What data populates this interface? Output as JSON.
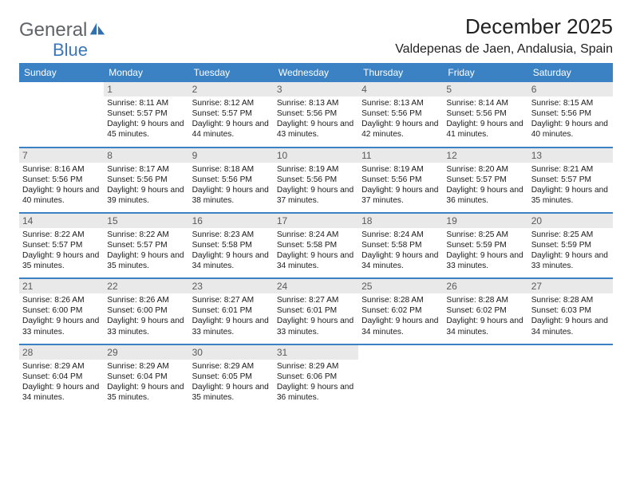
{
  "brand": {
    "part1": "General",
    "part2": "Blue"
  },
  "title": "December 2025",
  "location": "Valdepenas de Jaen, Andalusia, Spain",
  "colors": {
    "header_blue": "#3b82c4",
    "row_divider": "#3b82c4",
    "daynum_bg": "#e9e9e9",
    "logo_gray": "#5f6368",
    "logo_blue": "#3b78b8",
    "bg": "#ffffff"
  },
  "typography": {
    "title_fontsize": 26,
    "location_fontsize": 16,
    "weekday_fontsize": 12,
    "daynum_fontsize": 12,
    "detail_fontsize": 10.2
  },
  "weekdays": [
    "Sunday",
    "Monday",
    "Tuesday",
    "Wednesday",
    "Thursday",
    "Friday",
    "Saturday"
  ],
  "weeks": [
    [
      {
        "blank": true
      },
      {
        "n": "1",
        "sr": "8:11 AM",
        "ss": "5:57 PM",
        "dl": "9 hours and 45 minutes."
      },
      {
        "n": "2",
        "sr": "8:12 AM",
        "ss": "5:57 PM",
        "dl": "9 hours and 44 minutes."
      },
      {
        "n": "3",
        "sr": "8:13 AM",
        "ss": "5:56 PM",
        "dl": "9 hours and 43 minutes."
      },
      {
        "n": "4",
        "sr": "8:13 AM",
        "ss": "5:56 PM",
        "dl": "9 hours and 42 minutes."
      },
      {
        "n": "5",
        "sr": "8:14 AM",
        "ss": "5:56 PM",
        "dl": "9 hours and 41 minutes."
      },
      {
        "n": "6",
        "sr": "8:15 AM",
        "ss": "5:56 PM",
        "dl": "9 hours and 40 minutes."
      }
    ],
    [
      {
        "n": "7",
        "sr": "8:16 AM",
        "ss": "5:56 PM",
        "dl": "9 hours and 40 minutes."
      },
      {
        "n": "8",
        "sr": "8:17 AM",
        "ss": "5:56 PM",
        "dl": "9 hours and 39 minutes."
      },
      {
        "n": "9",
        "sr": "8:18 AM",
        "ss": "5:56 PM",
        "dl": "9 hours and 38 minutes."
      },
      {
        "n": "10",
        "sr": "8:19 AM",
        "ss": "5:56 PM",
        "dl": "9 hours and 37 minutes."
      },
      {
        "n": "11",
        "sr": "8:19 AM",
        "ss": "5:56 PM",
        "dl": "9 hours and 37 minutes."
      },
      {
        "n": "12",
        "sr": "8:20 AM",
        "ss": "5:57 PM",
        "dl": "9 hours and 36 minutes."
      },
      {
        "n": "13",
        "sr": "8:21 AM",
        "ss": "5:57 PM",
        "dl": "9 hours and 35 minutes."
      }
    ],
    [
      {
        "n": "14",
        "sr": "8:22 AM",
        "ss": "5:57 PM",
        "dl": "9 hours and 35 minutes."
      },
      {
        "n": "15",
        "sr": "8:22 AM",
        "ss": "5:57 PM",
        "dl": "9 hours and 35 minutes."
      },
      {
        "n": "16",
        "sr": "8:23 AM",
        "ss": "5:58 PM",
        "dl": "9 hours and 34 minutes."
      },
      {
        "n": "17",
        "sr": "8:24 AM",
        "ss": "5:58 PM",
        "dl": "9 hours and 34 minutes."
      },
      {
        "n": "18",
        "sr": "8:24 AM",
        "ss": "5:58 PM",
        "dl": "9 hours and 34 minutes."
      },
      {
        "n": "19",
        "sr": "8:25 AM",
        "ss": "5:59 PM",
        "dl": "9 hours and 33 minutes."
      },
      {
        "n": "20",
        "sr": "8:25 AM",
        "ss": "5:59 PM",
        "dl": "9 hours and 33 minutes."
      }
    ],
    [
      {
        "n": "21",
        "sr": "8:26 AM",
        "ss": "6:00 PM",
        "dl": "9 hours and 33 minutes."
      },
      {
        "n": "22",
        "sr": "8:26 AM",
        "ss": "6:00 PM",
        "dl": "9 hours and 33 minutes."
      },
      {
        "n": "23",
        "sr": "8:27 AM",
        "ss": "6:01 PM",
        "dl": "9 hours and 33 minutes."
      },
      {
        "n": "24",
        "sr": "8:27 AM",
        "ss": "6:01 PM",
        "dl": "9 hours and 33 minutes."
      },
      {
        "n": "25",
        "sr": "8:28 AM",
        "ss": "6:02 PM",
        "dl": "9 hours and 34 minutes."
      },
      {
        "n": "26",
        "sr": "8:28 AM",
        "ss": "6:02 PM",
        "dl": "9 hours and 34 minutes."
      },
      {
        "n": "27",
        "sr": "8:28 AM",
        "ss": "6:03 PM",
        "dl": "9 hours and 34 minutes."
      }
    ],
    [
      {
        "n": "28",
        "sr": "8:29 AM",
        "ss": "6:04 PM",
        "dl": "9 hours and 34 minutes."
      },
      {
        "n": "29",
        "sr": "8:29 AM",
        "ss": "6:04 PM",
        "dl": "9 hours and 35 minutes."
      },
      {
        "n": "30",
        "sr": "8:29 AM",
        "ss": "6:05 PM",
        "dl": "9 hours and 35 minutes."
      },
      {
        "n": "31",
        "sr": "8:29 AM",
        "ss": "6:06 PM",
        "dl": "9 hours and 36 minutes."
      },
      {
        "blank": true
      },
      {
        "blank": true
      },
      {
        "blank": true
      }
    ]
  ],
  "labels": {
    "sunrise": "Sunrise:",
    "sunset": "Sunset:",
    "daylight": "Daylight:"
  }
}
